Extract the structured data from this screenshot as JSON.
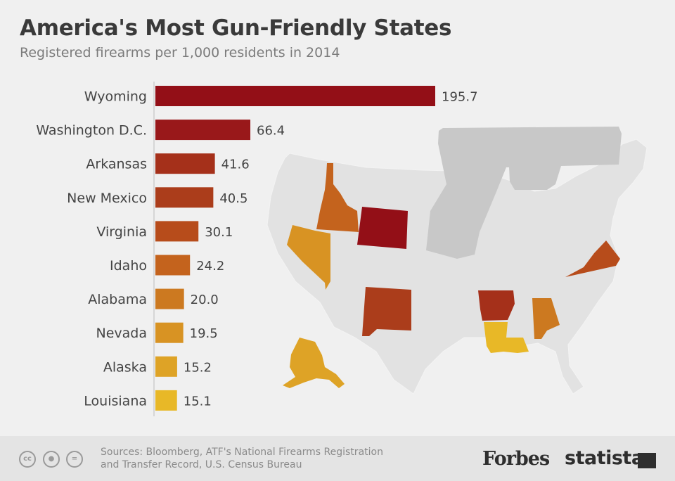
{
  "header": {
    "title": "America's Most Gun-Friendly States",
    "subtitle": "Registered firearms per 1,000 residents in 2014"
  },
  "chart_data": {
    "type": "bar",
    "orientation": "horizontal",
    "title": "America's Most Gun-Friendly States",
    "subtitle": "Registered firearms per 1,000 residents in 2014",
    "xlabel": "",
    "ylabel": "",
    "xlim": [
      0,
      195.7
    ],
    "grid": false,
    "legend": "none",
    "categories": [
      "Wyoming",
      "Washington D.C.",
      "Arkansas",
      "New Mexico",
      "Virginia",
      "Idaho",
      "Alabama",
      "Nevada",
      "Alaska",
      "Louisiana"
    ],
    "values": [
      195.7,
      66.4,
      41.6,
      40.5,
      30.1,
      24.2,
      20.0,
      19.5,
      15.2,
      15.1
    ],
    "value_labels": [
      "195.7",
      "66.4",
      "41.6",
      "40.5",
      "30.1",
      "24.2",
      "20.0",
      "19.5",
      "15.2",
      "15.1"
    ],
    "bar_colors": [
      "#930f17",
      "#99181a",
      "#a5301a",
      "#ab3d1b",
      "#b74c1b",
      "#c4631d",
      "#cc7920",
      "#d89323",
      "#dea326",
      "#e8b827"
    ]
  },
  "map": {
    "state_colors": {
      "Wyoming": "#930f17",
      "Arkansas": "#a5301a",
      "New Mexico": "#ab3d1b",
      "Virginia": "#b74c1b",
      "Idaho": "#c4631d",
      "Alabama": "#cc7920",
      "Nevada": "#d89323",
      "Alaska": "#dea326",
      "Louisiana": "#e8b827"
    },
    "base_color": "#e2e2e2",
    "gun_color": "#c8c8c8"
  },
  "footer": {
    "source_line1": "Sources: Bloomberg, ATF's National Firearms Registration",
    "source_line2": "and Transfer Record, U.S. Census Bureau",
    "license_icons": [
      "creative-commons-icon",
      "attribution-icon",
      "no-derivatives-icon"
    ],
    "brand1": "Forbes",
    "brand2": "statista"
  }
}
